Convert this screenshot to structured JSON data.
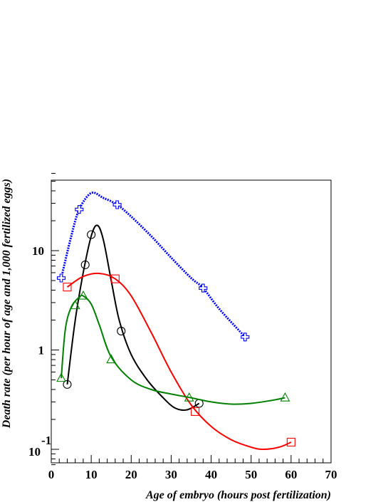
{
  "chart_data": {
    "type": "scatter",
    "title": "",
    "xlabel": "Age of embryo (hours post fertilization)",
    "ylabel": "Death rate (per hour of age and 1,000 fertilized eggs)",
    "xlim": [
      0,
      70
    ],
    "ylim": [
      0.07,
      60
    ],
    "yscale": "log",
    "grid": false,
    "x_ticks": [
      0,
      10,
      20,
      30,
      40,
      50,
      60,
      70
    ],
    "x_tick_labels": [
      "0",
      "10",
      "20",
      "30",
      "40",
      "50",
      "60",
      "70"
    ],
    "y_tick_labels": [
      {
        "value": 10,
        "base": "10",
        "exp": ""
      },
      {
        "value": 1,
        "base": "1",
        "exp": ""
      },
      {
        "value": 0.1,
        "base": "10",
        "exp": "-1"
      }
    ],
    "series": [
      {
        "color": "#0000ff",
        "marker": "cross",
        "line": "dotted",
        "points": [
          [
            2.5,
            5.3
          ],
          [
            7,
            26
          ],
          [
            16.5,
            29
          ],
          [
            38,
            4.2
          ],
          [
            48.5,
            1.35
          ]
        ],
        "curve": [
          [
            2.5,
            5.3
          ],
          [
            5,
            14
          ],
          [
            7,
            26
          ],
          [
            10,
            38
          ],
          [
            13,
            34
          ],
          [
            16.5,
            29
          ],
          [
            20,
            22
          ],
          [
            25,
            14
          ],
          [
            30,
            8.5
          ],
          [
            35,
            5.3
          ],
          [
            38,
            4.2
          ],
          [
            42,
            2.6
          ],
          [
            48.5,
            1.35
          ]
        ]
      },
      {
        "color": "#000000",
        "marker": "circle",
        "line": "solid",
        "points": [
          [
            4,
            0.45
          ],
          [
            8.5,
            7.2
          ],
          [
            10,
            14.5
          ],
          [
            17.5,
            1.55
          ],
          [
            37,
            0.29
          ]
        ],
        "curve": [
          [
            4,
            0.45
          ],
          [
            6,
            2.0
          ],
          [
            8,
            6.0
          ],
          [
            10,
            14
          ],
          [
            11.5,
            18
          ],
          [
            13,
            13
          ],
          [
            15,
            5
          ],
          [
            17,
            2.0
          ],
          [
            20,
            0.9
          ],
          [
            24,
            0.5
          ],
          [
            28,
            0.33
          ],
          [
            31,
            0.26
          ],
          [
            34,
            0.25
          ],
          [
            37,
            0.29
          ]
        ]
      },
      {
        "color": "#ff0000",
        "marker": "square",
        "line": "solid",
        "points": [
          [
            4,
            4.3
          ],
          [
            16,
            5.2
          ],
          [
            36,
            0.24
          ],
          [
            60,
            0.118
          ]
        ],
        "curve": [
          [
            4,
            4.3
          ],
          [
            8,
            5.5
          ],
          [
            12,
            5.9
          ],
          [
            16,
            5.2
          ],
          [
            20,
            3.5
          ],
          [
            25,
            1.5
          ],
          [
            30,
            0.6
          ],
          [
            35,
            0.28
          ],
          [
            40,
            0.17
          ],
          [
            45,
            0.125
          ],
          [
            50,
            0.105
          ],
          [
            53,
            0.1
          ],
          [
            57,
            0.105
          ],
          [
            60,
            0.118
          ]
        ]
      },
      {
        "color": "#008000",
        "marker": "triangle",
        "line": "solid",
        "points": [
          [
            2.5,
            0.52
          ],
          [
            6,
            2.8
          ],
          [
            8,
            3.5
          ],
          [
            15,
            0.8
          ],
          [
            34.5,
            0.33
          ],
          [
            58.5,
            0.33
          ]
        ],
        "curve": [
          [
            2.5,
            0.52
          ],
          [
            3.5,
            1.6
          ],
          [
            5,
            2.7
          ],
          [
            7,
            3.4
          ],
          [
            8,
            3.5
          ],
          [
            10,
            2.9
          ],
          [
            12,
            1.8
          ],
          [
            15,
            0.85
          ],
          [
            20,
            0.5
          ],
          [
            25,
            0.4
          ],
          [
            30,
            0.36
          ],
          [
            35,
            0.33
          ],
          [
            40,
            0.3
          ],
          [
            45,
            0.285
          ],
          [
            50,
            0.29
          ],
          [
            55,
            0.31
          ],
          [
            58.5,
            0.33
          ]
        ]
      }
    ]
  }
}
